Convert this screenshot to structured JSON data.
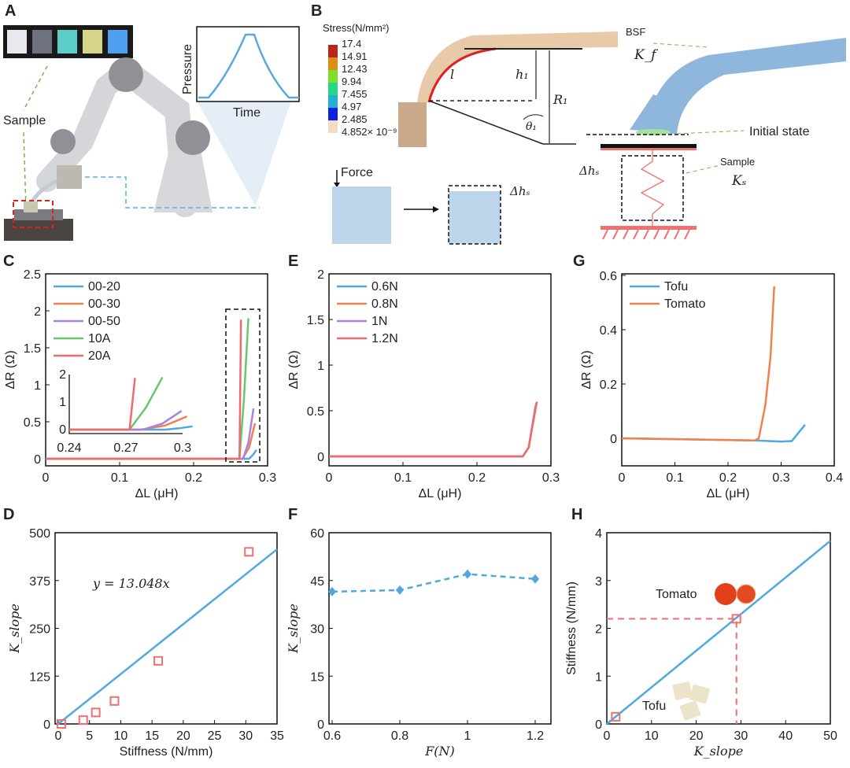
{
  "panels": {
    "A": "A",
    "B": "B",
    "C": "C",
    "D": "D",
    "E": "E",
    "F": "F",
    "G": "G",
    "H": "H"
  },
  "panel_a": {
    "sample_label": "Sample",
    "inset_ylabel": "Pressure",
    "inset_xlabel": "Time",
    "swatch_colors": [
      "#e8e8ee",
      "#6f7280",
      "#5ccdc6",
      "#d6d68a",
      "#4f9ff0"
    ]
  },
  "panel_b": {
    "stress_title": "Stress(N/mm²)",
    "stress_levels": [
      "17.4",
      "14.91",
      "12.43",
      "9.94",
      "7.455",
      "4.97",
      "2.485",
      "4.852× 10⁻⁹"
    ],
    "stress_colors": [
      "#b8261c",
      "#e08c10",
      "#7ee02a",
      "#28d68a",
      "#20b0d0",
      "#1020e0",
      "#f4dcc0"
    ],
    "l_label": "l",
    "h1_label": "h₁",
    "r1_label": "R₁",
    "theta_label": "θ₁",
    "force_label": "Force",
    "dhs_label": "Δhₛ",
    "bsf_label": "BSF",
    "kf_label": "K_f",
    "initial_state_label": "Initial state",
    "sample_label": "Sample",
    "ks_label": "Kₛ"
  },
  "chart_data": [
    {
      "id": "C",
      "type": "line",
      "xlabel": "ΔL (μH)",
      "ylabel": "ΔR (Ω)",
      "xlim": [
        0,
        0.3
      ],
      "ylim": [
        0,
        2.5
      ],
      "xticks": [
        "0",
        "0.1",
        "0.2",
        "0.3"
      ],
      "xtick_values": [
        0,
        0.1,
        0.2,
        0.3
      ],
      "yticks": [
        "0",
        "0.5",
        "1",
        "1.5",
        "2",
        "2.5"
      ],
      "ytick_values": [
        0,
        0.5,
        1,
        1.5,
        2,
        2.5
      ],
      "legend": "top-left",
      "series": [
        {
          "name": "00-20",
          "color": "#4FA8DE",
          "x": [
            0,
            0.275,
            0.28,
            0.285
          ],
          "y": [
            0,
            0,
            0.05,
            0.12
          ]
        },
        {
          "name": "00-30",
          "color": "#F08050",
          "x": [
            0,
            0.266,
            0.275,
            0.283
          ],
          "y": [
            0,
            0,
            0.15,
            0.48
          ]
        },
        {
          "name": "00-50",
          "color": "#A585E0",
          "x": [
            0,
            0.267,
            0.274,
            0.281
          ],
          "y": [
            0,
            0,
            0.22,
            0.68
          ]
        },
        {
          "name": "10A",
          "color": "#6CC46C",
          "x": [
            0,
            0.262,
            0.268,
            0.274
          ],
          "y": [
            0,
            0,
            0.8,
            1.9
          ]
        },
        {
          "name": "20A",
          "color": "#F06A6A",
          "x": [
            0,
            0.262,
            0.264
          ],
          "y": [
            0,
            0,
            1.88
          ]
        }
      ],
      "inset": {
        "xlim": [
          0.24,
          0.3
        ],
        "ylim": [
          0,
          2
        ],
        "xticks": [
          "0.24",
          "0.27",
          "0.3"
        ],
        "xtick_values": [
          0.24,
          0.27,
          0.3
        ],
        "yticks": [
          "0",
          "1",
          "2"
        ],
        "ytick_values": [
          0,
          1,
          2
        ]
      }
    },
    {
      "id": "E",
      "type": "line",
      "xlabel": "ΔL (μH)",
      "ylabel": "ΔR (Ω)",
      "xlim": [
        0,
        0.3
      ],
      "ylim": [
        0,
        2
      ],
      "xticks": [
        "0",
        "0.1",
        "0.2",
        "0.3"
      ],
      "xtick_values": [
        0,
        0.1,
        0.2,
        0.3
      ],
      "yticks": [
        "0",
        "0.5",
        "1",
        "1.5",
        "2"
      ],
      "ytick_values": [
        0,
        0.5,
        1,
        1.5,
        2
      ],
      "legend": "top-left",
      "series": [
        {
          "name": "0.6N",
          "color": "#4FA8DE",
          "x": [
            0,
            0.262,
            0.27,
            0.279
          ],
          "y": [
            0,
            0,
            0.1,
            0.55
          ]
        },
        {
          "name": "0.8N",
          "color": "#F08050",
          "x": [
            0,
            0.262,
            0.27,
            0.28
          ],
          "y": [
            0,
            0,
            0.1,
            0.57
          ]
        },
        {
          "name": "1N",
          "color": "#A585E0",
          "x": [
            0,
            0.262,
            0.27,
            0.28
          ],
          "y": [
            0,
            0,
            0.1,
            0.58
          ]
        },
        {
          "name": "1.2N",
          "color": "#F06A6A",
          "x": [
            0,
            0.262,
            0.27,
            0.281
          ],
          "y": [
            0,
            0,
            0.1,
            0.6
          ]
        }
      ]
    },
    {
      "id": "G",
      "type": "line",
      "xlabel": "ΔL (μH)",
      "ylabel": "ΔR (Ω)",
      "xlim": [
        0,
        0.4
      ],
      "ylim": [
        -0.05,
        0.6
      ],
      "xticks": [
        "0",
        "0.1",
        "0.2",
        "0.3",
        "0.4"
      ],
      "xtick_values": [
        0,
        0.1,
        0.2,
        0.3,
        0.4
      ],
      "yticks": [
        "0",
        "0.2",
        "0.4",
        "0.6"
      ],
      "ytick_values": [
        0,
        0.2,
        0.4,
        0.6
      ],
      "legend": "top-left",
      "series": [
        {
          "name": "Tofu",
          "color": "#4FA8DE",
          "x": [
            0,
            0.25,
            0.3,
            0.32,
            0.345
          ],
          "y": [
            0,
            -0.008,
            -0.012,
            -0.01,
            0.05
          ]
        },
        {
          "name": "Tomato",
          "color": "#F08050",
          "x": [
            0,
            0.25,
            0.258,
            0.27,
            0.28,
            0.287
          ],
          "y": [
            0,
            -0.008,
            0,
            0.12,
            0.3,
            0.56
          ]
        }
      ]
    },
    {
      "id": "D",
      "type": "scatter",
      "xlabel": "Stiffness (N/mm)",
      "ylabel": "K_slope",
      "xlim": [
        0,
        35
      ],
      "ylim": [
        0,
        500
      ],
      "xticks": [
        "0",
        "5",
        "10",
        "15",
        "20",
        "25",
        "30",
        "35"
      ],
      "xtick_values": [
        0,
        5,
        10,
        15,
        20,
        25,
        30,
        35
      ],
      "yticks": [
        "0",
        "125",
        "250",
        "375",
        "500"
      ],
      "ytick_values": [
        0,
        125,
        250,
        375,
        500
      ],
      "annotation": "y = 13.048x",
      "fit": {
        "slope": 13.048,
        "color": "#4FA8DE"
      },
      "points": {
        "color": "#EE7070",
        "x": [
          0.5,
          4,
          6,
          9,
          16,
          30.5
        ],
        "y": [
          0,
          10,
          30,
          60,
          165,
          450
        ]
      }
    },
    {
      "id": "F",
      "type": "line",
      "xlabel": "F(N)",
      "ylabel": "K_slope",
      "xlim": [
        0.6,
        1.2
      ],
      "ylim": [
        0,
        60
      ],
      "xticks": [
        "0.6",
        "0.8",
        "1",
        "1.2"
      ],
      "xtick_values": [
        0.6,
        0.8,
        1,
        1.2
      ],
      "yticks": [
        "0",
        "15",
        "30",
        "45",
        "60"
      ],
      "ytick_values": [
        0,
        15,
        30,
        45,
        60
      ],
      "series": [
        {
          "name": "K_slope",
          "color": "#4FA8DE",
          "x": [
            0.6,
            0.8,
            1.0,
            1.2
          ],
          "y": [
            41.5,
            42,
            47,
            45.5
          ]
        }
      ]
    },
    {
      "id": "H",
      "type": "scatter",
      "xlabel": "K_slope",
      "ylabel": "Stiffness (N/mm)",
      "xlim": [
        0,
        50
      ],
      "ylim": [
        0,
        4
      ],
      "xticks": [
        "0",
        "10",
        "20",
        "30",
        "40",
        "50"
      ],
      "xtick_values": [
        0,
        10,
        20,
        30,
        40,
        50
      ],
      "yticks": [
        "0",
        "1",
        "2",
        "3",
        "4"
      ],
      "ytick_values": [
        0,
        1,
        2,
        3,
        4
      ],
      "fit": {
        "slope": 0.0766,
        "color": "#4FA8DE"
      },
      "points": {
        "color": "#EE7070",
        "x": [
          2,
          29
        ],
        "y": [
          0.15,
          2.2
        ]
      },
      "annotations": [
        "Tomato",
        "Tofu"
      ]
    }
  ]
}
